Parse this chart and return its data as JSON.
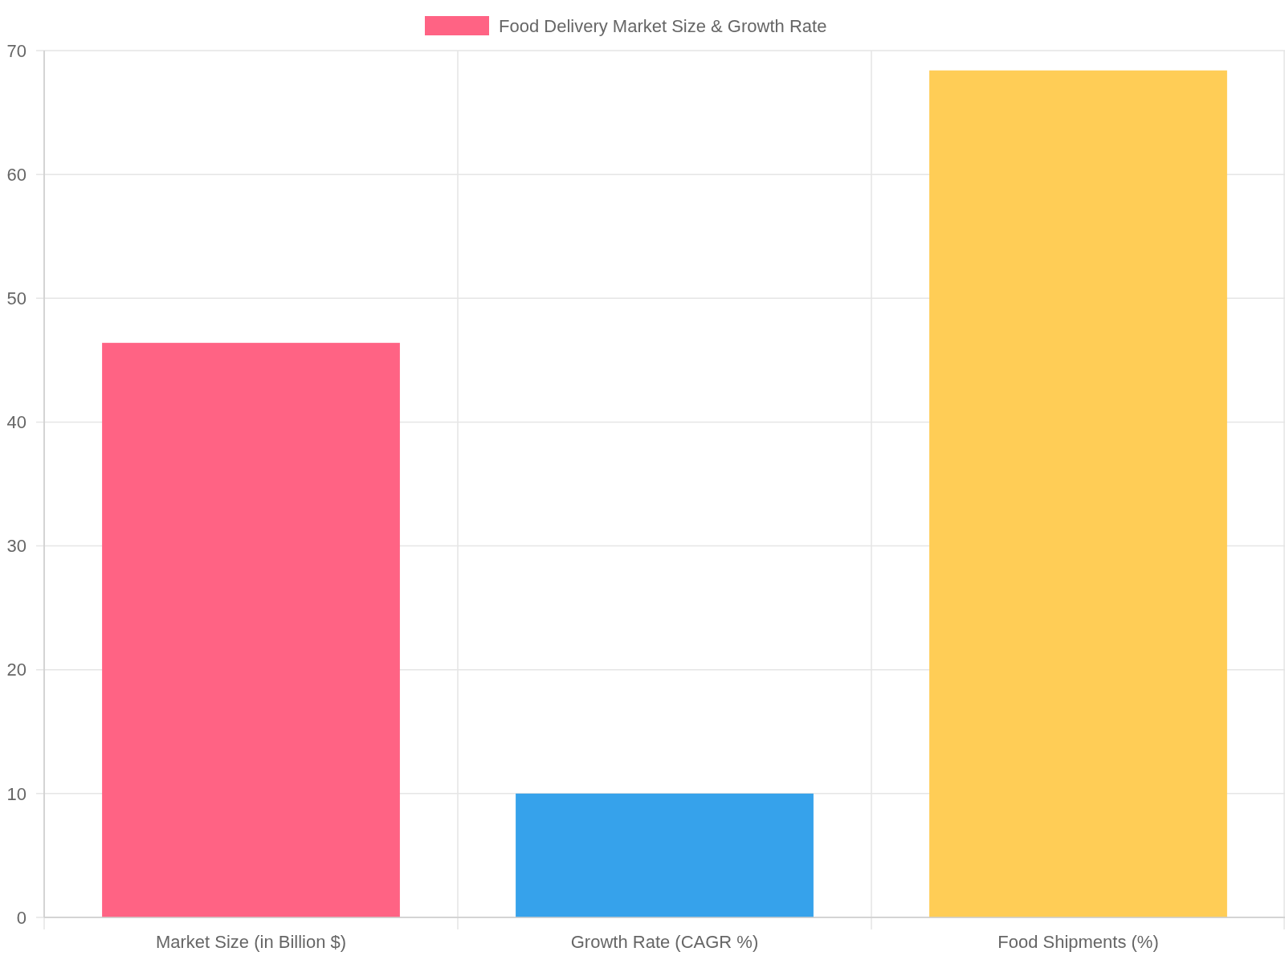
{
  "chart_data": {
    "type": "bar",
    "categories": [
      "Market Size (in Billion $)",
      "Growth Rate (CAGR %)",
      "Food Shipments (%)"
    ],
    "series": [
      {
        "name": "Food Delivery Market Size & Growth Rate",
        "color": "#ff6384",
        "colors": [
          "#ff6384",
          "#36a2eb",
          "#ffcd56"
        ],
        "values": [
          46.4,
          10.0,
          68.4
        ]
      }
    ],
    "ylim": [
      0,
      70
    ],
    "yticks": [
      0,
      10,
      20,
      30,
      40,
      50,
      60,
      70
    ],
    "grid": true,
    "legend": "top"
  }
}
